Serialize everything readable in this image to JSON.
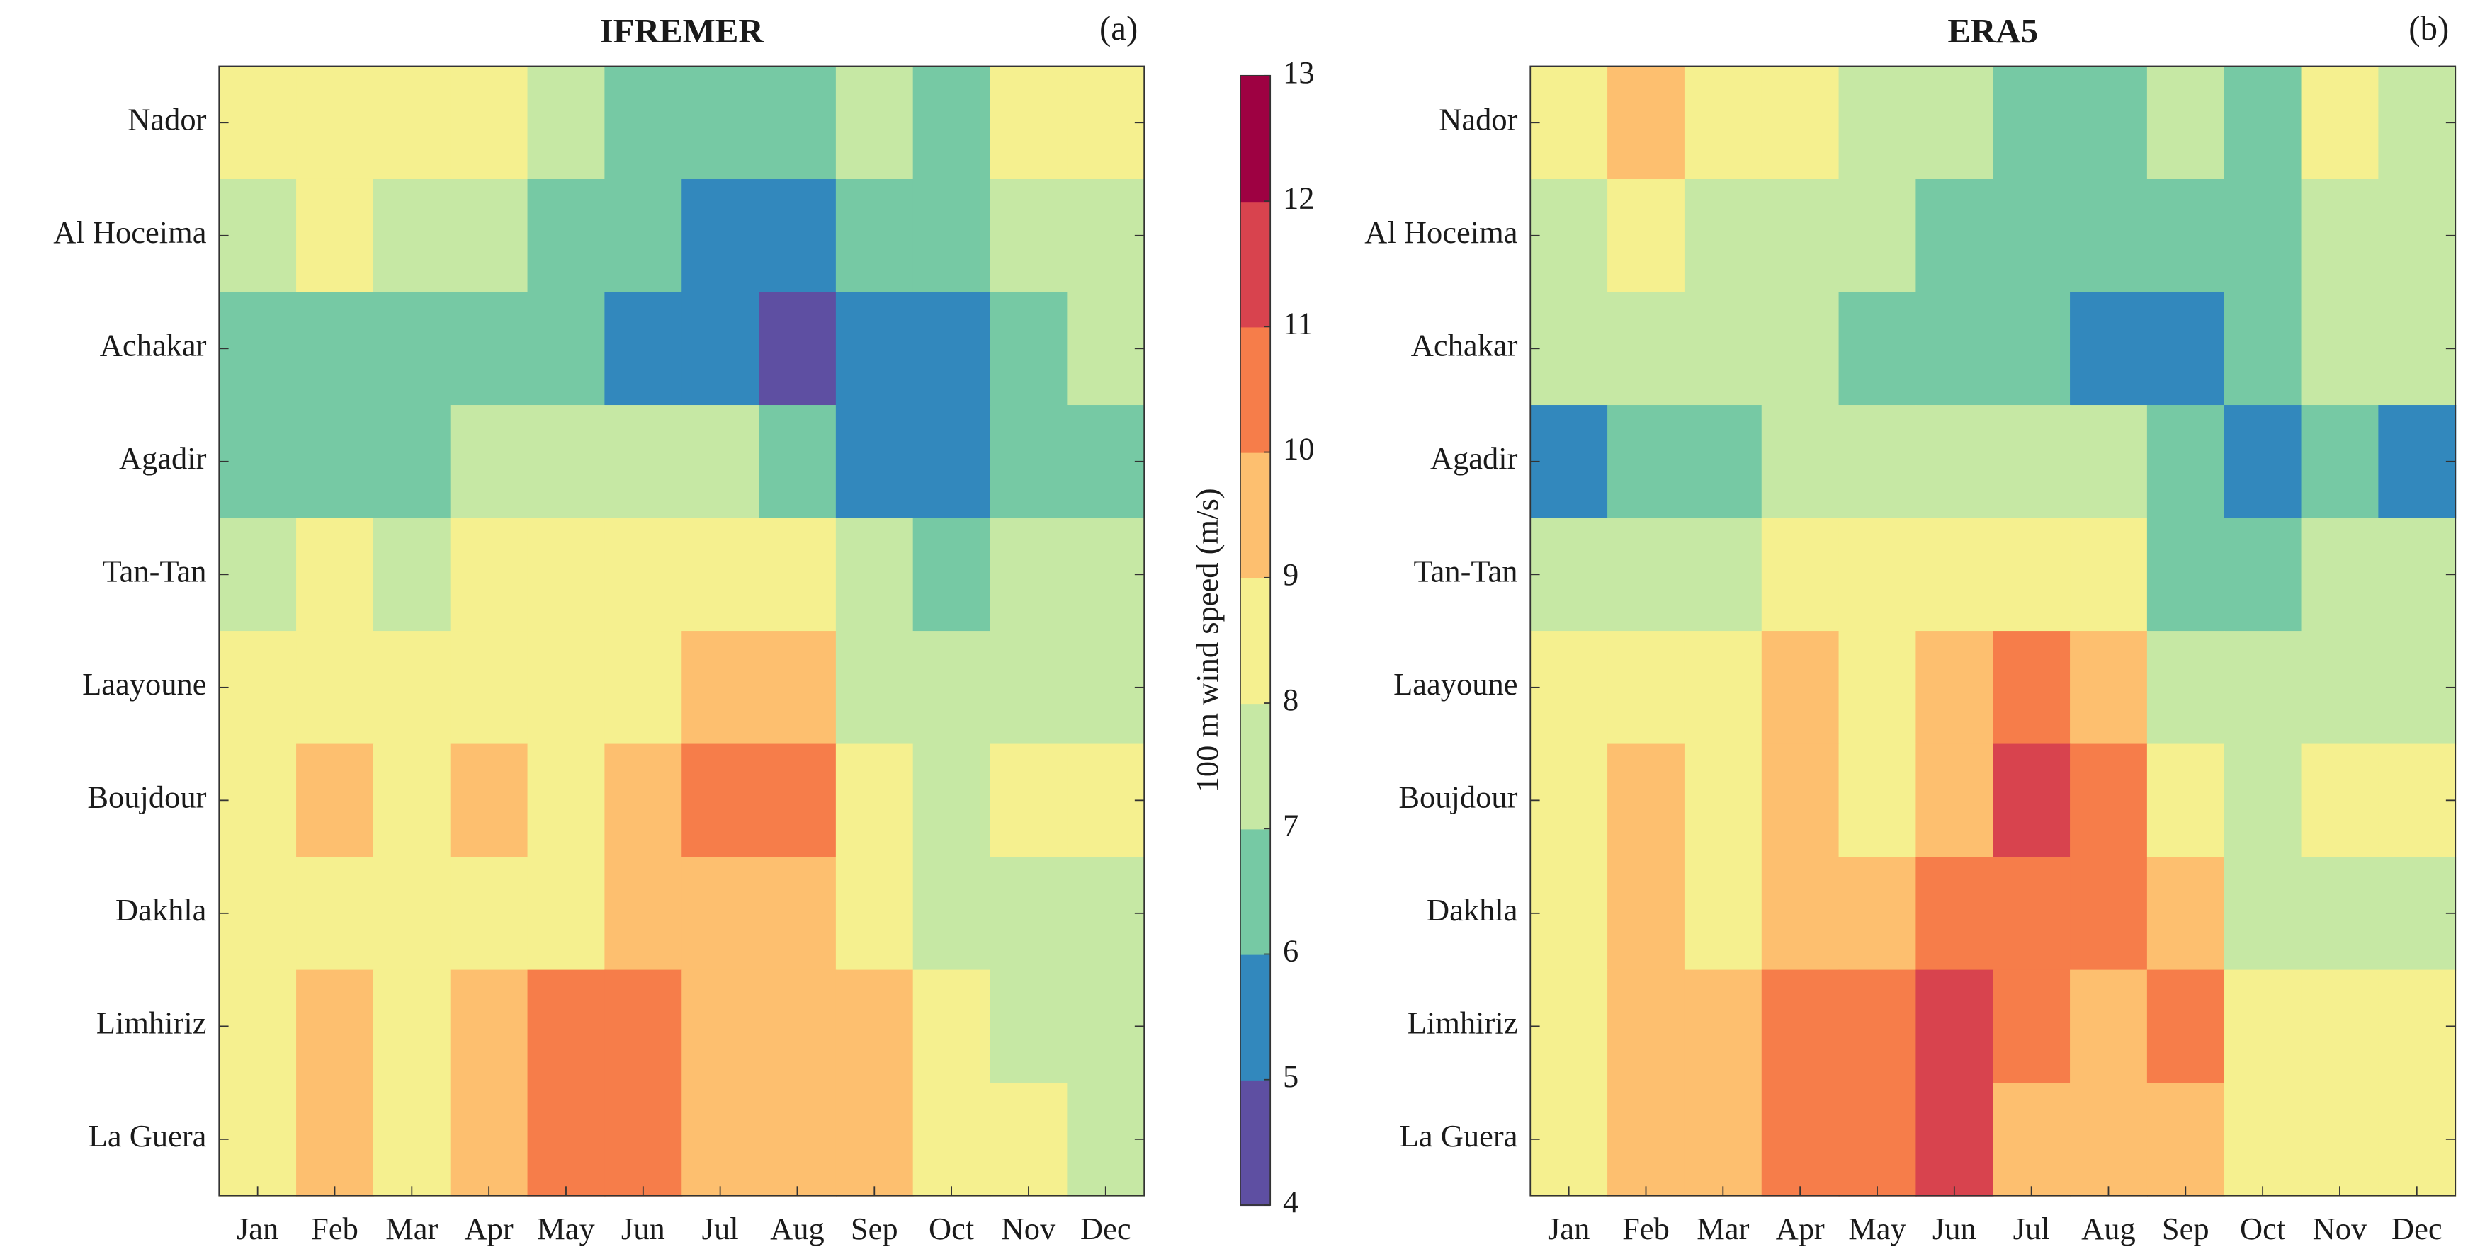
{
  "chart_data": [
    {
      "type": "heatmap",
      "title": "IFREMER",
      "annotation": "(a)",
      "categories": [
        "Jan",
        "Feb",
        "Mar",
        "Apr",
        "May",
        "Jun",
        "Jul",
        "Aug",
        "Sep",
        "Oct",
        "Nov",
        "Dec"
      ],
      "rows": [
        "Nador",
        "Al Hoceima",
        "Achakar",
        "Agadir",
        "Tan-Tan",
        "Laayoune",
        "Boujdour",
        "Dakhla",
        "Limhiriz",
        "La Guera"
      ],
      "values": [
        [
          8.5,
          8.5,
          8.5,
          8.5,
          7.5,
          6.5,
          6.5,
          6.5,
          7.5,
          6.5,
          8.5,
          8.5
        ],
        [
          7.5,
          8.5,
          7.5,
          7.5,
          6.5,
          6.5,
          5.5,
          5.5,
          6.5,
          6.5,
          7.5,
          7.5
        ],
        [
          6.5,
          6.5,
          6.5,
          6.5,
          6.5,
          5.5,
          5.5,
          4.5,
          5.5,
          5.5,
          6.5,
          7.5
        ],
        [
          6.5,
          6.5,
          6.5,
          7.5,
          7.5,
          7.5,
          7.5,
          6.5,
          5.5,
          5.5,
          6.5,
          6.5
        ],
        [
          7.5,
          8.5,
          7.5,
          8.5,
          8.5,
          8.5,
          8.5,
          8.5,
          7.5,
          6.5,
          7.5,
          7.5
        ],
        [
          8.5,
          8.5,
          8.5,
          8.5,
          8.5,
          8.5,
          9.5,
          9.5,
          7.5,
          7.5,
          7.5,
          7.5
        ],
        [
          8.5,
          9.5,
          8.5,
          9.5,
          8.5,
          9.5,
          10.5,
          10.5,
          8.5,
          7.5,
          8.5,
          8.5
        ],
        [
          8.5,
          8.5,
          8.5,
          8.5,
          8.5,
          9.5,
          9.5,
          9.5,
          8.5,
          7.5,
          7.5,
          7.5
        ],
        [
          8.5,
          9.5,
          8.5,
          9.5,
          10.5,
          10.5,
          9.5,
          9.5,
          9.5,
          8.5,
          7.5,
          7.5
        ],
        [
          8.5,
          9.5,
          8.5,
          9.5,
          10.5,
          10.5,
          9.5,
          9.5,
          9.5,
          8.5,
          8.5,
          7.5
        ]
      ]
    },
    {
      "type": "heatmap",
      "title": "ERA5",
      "annotation": "(b)",
      "categories": [
        "Jan",
        "Feb",
        "Mar",
        "Apr",
        "May",
        "Jun",
        "Jul",
        "Aug",
        "Sep",
        "Oct",
        "Nov",
        "Dec"
      ],
      "rows": [
        "Nador",
        "Al Hoceima",
        "Achakar",
        "Agadir",
        "Tan-Tan",
        "Laayoune",
        "Boujdour",
        "Dakhla",
        "Limhiriz",
        "La Guera"
      ],
      "values": [
        [
          8.5,
          9.5,
          8.5,
          8.5,
          7.5,
          7.5,
          6.5,
          6.5,
          7.5,
          6.5,
          8.5,
          7.5
        ],
        [
          7.5,
          8.5,
          7.5,
          7.5,
          7.5,
          6.5,
          6.5,
          6.5,
          6.5,
          6.5,
          7.5,
          7.5
        ],
        [
          7.5,
          7.5,
          7.5,
          7.5,
          6.5,
          6.5,
          6.5,
          5.5,
          5.5,
          6.5,
          7.5,
          7.5
        ],
        [
          5.5,
          6.5,
          6.5,
          7.5,
          7.5,
          7.5,
          7.5,
          7.5,
          6.5,
          5.5,
          6.5,
          5.5
        ],
        [
          7.5,
          7.5,
          7.5,
          8.5,
          8.5,
          8.5,
          8.5,
          8.5,
          6.5,
          6.5,
          7.5,
          7.5
        ],
        [
          8.5,
          8.5,
          8.5,
          9.5,
          8.5,
          9.5,
          10.5,
          9.5,
          7.5,
          7.5,
          7.5,
          7.5
        ],
        [
          8.5,
          9.5,
          8.5,
          9.5,
          8.5,
          9.5,
          11.5,
          10.5,
          8.5,
          7.5,
          8.5,
          8.5
        ],
        [
          8.5,
          9.5,
          8.5,
          9.5,
          9.5,
          10.5,
          10.5,
          10.5,
          9.5,
          7.5,
          7.5,
          7.5
        ],
        [
          8.5,
          9.5,
          9.5,
          10.5,
          10.5,
          11.5,
          10.5,
          9.5,
          10.5,
          8.5,
          8.5,
          8.5
        ],
        [
          8.5,
          9.5,
          9.5,
          10.5,
          10.5,
          11.5,
          9.5,
          9.5,
          9.5,
          8.5,
          8.5,
          8.5
        ]
      ]
    },
    {
      "type": "colorbar",
      "label": "100 m wind speed (m/s)",
      "clim": [
        4,
        13
      ],
      "ticks": [
        4,
        5,
        6,
        7,
        8,
        9,
        10,
        11,
        12,
        13
      ],
      "colors": [
        "#5e4fa2",
        "#3288bd",
        "#76c9a4",
        "#c6e8a4",
        "#f5f08f",
        "#fdbf6f",
        "#f67d4a",
        "#d8434e",
        "#9e0142"
      ]
    }
  ]
}
